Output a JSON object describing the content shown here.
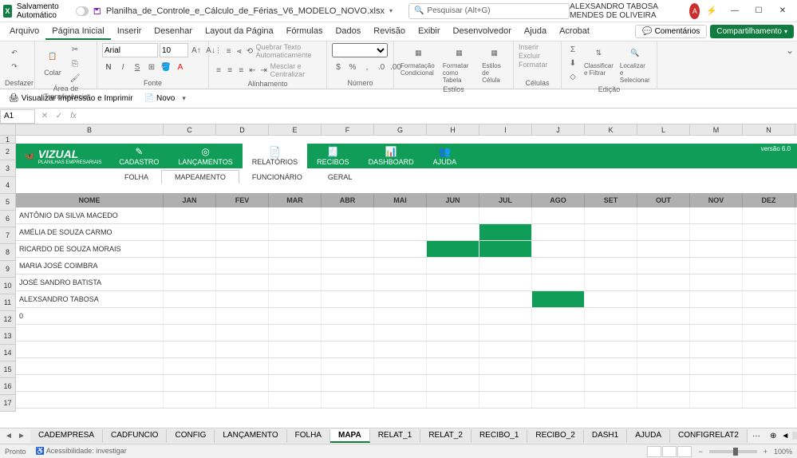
{
  "titlebar": {
    "autosave_label": "Salvamento Automático",
    "filename": "Planilha_de_Controle_e_Cálculo_de_Férias_V6_MODELO_NOVO.xlsx",
    "search_placeholder": "Pesquisar (Alt+G)",
    "user_name": "ALEXSANDRO TABOSA MENDES DE OLIVEIRA"
  },
  "menu": {
    "items": [
      "Arquivo",
      "Página Inicial",
      "Inserir",
      "Desenhar",
      "Layout da Página",
      "Fórmulas",
      "Dados",
      "Revisão",
      "Exibir",
      "Desenvolvedor",
      "Ajuda",
      "Acrobat"
    ],
    "active_index": 1,
    "comments": "Comentários",
    "share": "Compartilhamento"
  },
  "ribbon": {
    "undo": "Desfazer",
    "paste": "Colar",
    "clipboard": "Área de Transferência",
    "font_name": "Arial",
    "font_size": "10",
    "font_label": "Fonte",
    "wrap": "Quebrar Texto Automaticamente",
    "merge": "Mesclar e Centralizar",
    "alignment": "Alinhamento",
    "number": "Número",
    "cond_format": "Formatação Condicional",
    "table_format": "Formatar como Tabela",
    "cell_styles": "Estilos de Célula",
    "styles": "Estilos",
    "insert": "Inserir",
    "delete": "Excluir",
    "format": "Formatar",
    "cells": "Células",
    "sort_filter": "Classificar e Filtrar",
    "find_select": "Localizar e Selecionar",
    "editing": "Edição"
  },
  "quickbar": {
    "print_preview": "Visualizar Impressão e Imprimir",
    "new": "Novo"
  },
  "formula": {
    "cell_ref": "A1"
  },
  "columns": [
    "B",
    "C",
    "D",
    "E",
    "F",
    "G",
    "H",
    "I",
    "J",
    "K",
    "L",
    "M",
    "N"
  ],
  "banner": {
    "brand": "VIZUAL",
    "brand_sub": "PLANILHAS EMPRESARIAIS",
    "version": "versão 6.0",
    "tabs": [
      "CADASTRO",
      "LANÇAMENTOS",
      "RELATÓRIOS",
      "RECIBOS",
      "DASHBOARD",
      "AJUDA"
    ],
    "active_tab": 2
  },
  "subtabs": {
    "items": [
      "FOLHA",
      "MAPEAMENTO",
      "FUNCIONÁRIO",
      "GERAL"
    ],
    "active": 1
  },
  "table": {
    "nome_header": "NOME",
    "months": [
      "JAN",
      "FEV",
      "MAR",
      "ABR",
      "MAI",
      "JUN",
      "JUL",
      "AGO",
      "SET",
      "OUT",
      "NOV",
      "DEZ"
    ],
    "rows": [
      {
        "nome": "ANTÔNIO DA SILVA MACEDO",
        "filled": []
      },
      {
        "nome": "AMÉLIA DE SOUZA CARMO",
        "filled": [
          6
        ]
      },
      {
        "nome": "RICARDO DE SOUZA MORAIS",
        "filled": [
          5,
          6
        ]
      },
      {
        "nome": "MARIA JOSÉ COIMBRA",
        "filled": []
      },
      {
        "nome": "JOSÉ SANDRO BATISTA",
        "filled": []
      },
      {
        "nome": "ALEXSANDRO TABOSA",
        "filled": [
          7
        ]
      },
      {
        "nome": "0",
        "filled": []
      }
    ],
    "fill_color": "#0f9d58"
  },
  "sheets": {
    "tabs": [
      "CADEMPRESA",
      "CADFUNCIO",
      "CONFIG",
      "LANÇAMENTO",
      "FOLHA",
      "MAPA",
      "RELAT_1",
      "RELAT_2",
      "RECIBO_1",
      "RECIBO_2",
      "DASH1",
      "AJUDA",
      "CONFIGRELAT2"
    ],
    "active": 5
  },
  "status": {
    "ready": "Pronto",
    "accessibility": "Acessibilidade: investigar",
    "zoom": "100%"
  }
}
